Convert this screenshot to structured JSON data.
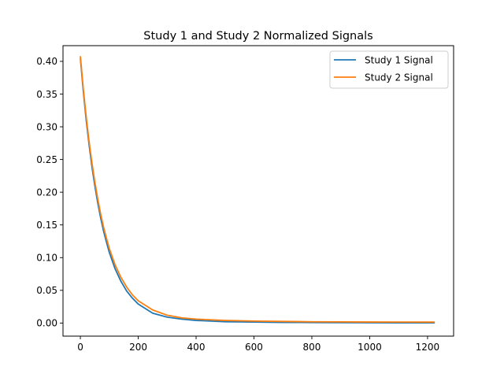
{
  "chart_data": {
    "type": "line",
    "title": "Study 1 and Study 2 Normalized Signals",
    "xlabel": "",
    "ylabel": "",
    "xlim": [
      -60,
      1290
    ],
    "ylim": [
      -0.02,
      0.424
    ],
    "x_ticks": [
      0,
      200,
      400,
      600,
      800,
      1000,
      1200
    ],
    "y_ticks": [
      0.0,
      0.05,
      0.1,
      0.15,
      0.2,
      0.25,
      0.3,
      0.35,
      0.4
    ],
    "grid": false,
    "legend_position": "top-right",
    "series": [
      {
        "name": "Study 1 Signal",
        "color": "#1f77b4",
        "x": [
          0,
          10,
          20,
          30,
          40,
          50,
          60,
          70,
          80,
          90,
          100,
          120,
          140,
          160,
          180,
          200,
          250,
          300,
          350,
          400,
          450,
          500,
          600,
          700,
          800,
          900,
          1000,
          1100,
          1225
        ],
        "y": [
          0.405,
          0.355,
          0.311,
          0.273,
          0.239,
          0.21,
          0.184,
          0.161,
          0.141,
          0.124,
          0.108,
          0.083,
          0.064,
          0.049,
          0.038,
          0.029,
          0.015,
          0.009,
          0.006,
          0.004,
          0.003,
          0.002,
          0.0015,
          0.001,
          0.0008,
          0.0006,
          0.0005,
          0.0004,
          0.0003
        ]
      },
      {
        "name": "Study 2 Signal",
        "color": "#ff7f0e",
        "x": [
          0,
          10,
          20,
          30,
          40,
          50,
          60,
          70,
          80,
          90,
          100,
          120,
          140,
          160,
          180,
          200,
          250,
          300,
          350,
          400,
          450,
          500,
          600,
          700,
          800,
          900,
          1000,
          1100,
          1225
        ],
        "y": [
          0.408,
          0.359,
          0.316,
          0.278,
          0.245,
          0.216,
          0.19,
          0.167,
          0.147,
          0.13,
          0.114,
          0.089,
          0.07,
          0.055,
          0.043,
          0.034,
          0.02,
          0.012,
          0.008,
          0.006,
          0.005,
          0.004,
          0.003,
          0.0025,
          0.002,
          0.0018,
          0.0016,
          0.0015,
          0.0014
        ]
      }
    ]
  }
}
